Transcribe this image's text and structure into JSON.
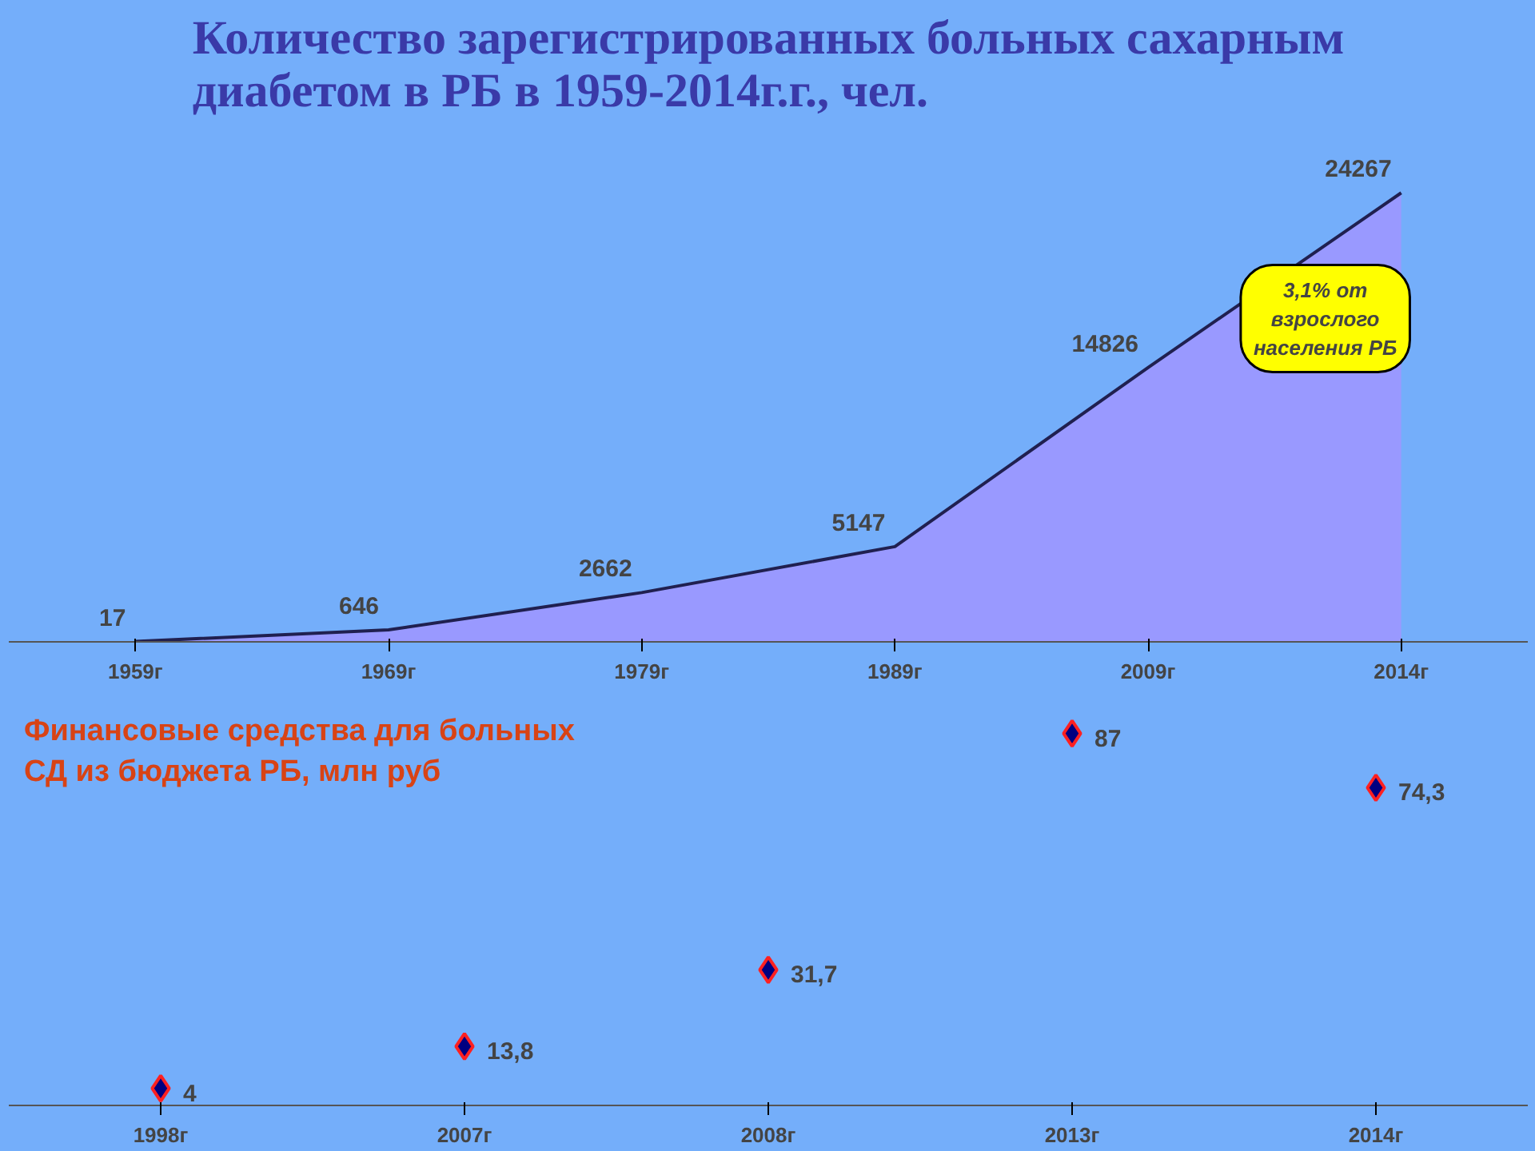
{
  "chart_data": [
    {
      "type": "area",
      "title": "Количество зарегистрированных больных сахарным диабетом в РБ  в 1959-2014г.г., чел.",
      "categories": [
        "1959г",
        "1969г",
        "1979г",
        "1989г",
        "2009г",
        "2014г"
      ],
      "series": [
        {
          "color": "#9999ff",
          "values": [
            17,
            646,
            2662,
            5147,
            14826,
            24267
          ]
        }
      ],
      "data_labels": true,
      "grid": false,
      "annotations": [
        "3,1% от взрослого населения РБ"
      ]
    },
    {
      "type": "scatter",
      "title": "Финансовые средства для больных СД из бюджета РБ, млн руб",
      "categories": [
        "1998г",
        "2007г",
        "2008г",
        "2013г",
        "2014г"
      ],
      "series": [
        {
          "color": "#000080",
          "values": [
            4,
            13.8,
            31.7,
            87,
            74.3
          ],
          "value_labels": [
            "4",
            "13,8",
            "31,7",
            "87",
            "74,3"
          ]
        }
      ],
      "marker": "diamond",
      "grid": false
    }
  ]
}
